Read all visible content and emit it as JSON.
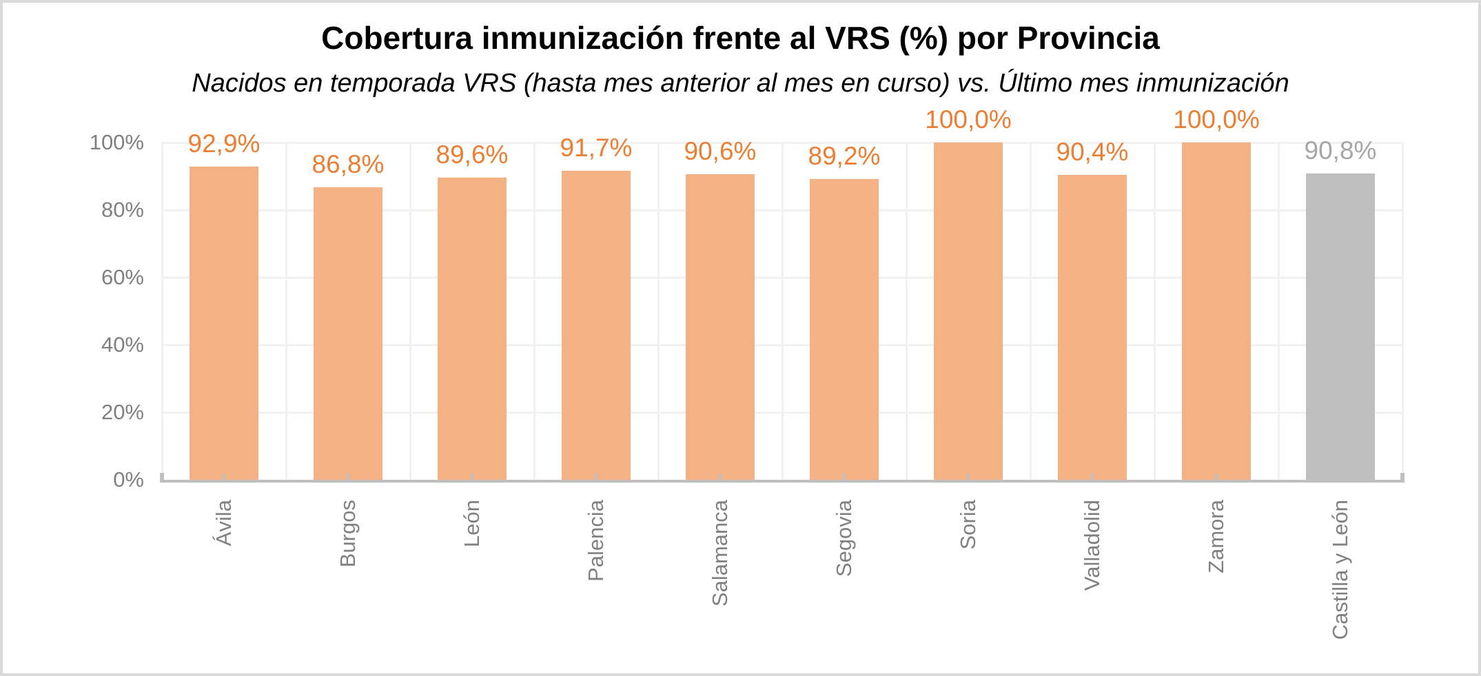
{
  "title": "Cobertura inmunización frente al VRS (%) por Provincia",
  "subtitle": "Nacidos en temporada VRS (hasta mes anterior al mes en curso) vs. Último mes inmunización",
  "chart_data": {
    "type": "bar",
    "title": "Cobertura inmunización frente al VRS (%) por Provincia",
    "subtitle": "Nacidos en temporada VRS (hasta mes anterior al mes en curso) vs. Último mes inmunización",
    "categories": [
      "Ávila",
      "Burgos",
      "León",
      "Palencia",
      "Salamanca",
      "Segovia",
      "Soria",
      "Valladolid",
      "Zamora",
      "Castilla y León"
    ],
    "values": [
      92.9,
      86.8,
      89.6,
      91.7,
      90.6,
      89.2,
      100.0,
      90.4,
      100.0,
      90.8
    ],
    "data_labels": [
      "92,9%",
      "86,8%",
      "89,6%",
      "91,7%",
      "90,6%",
      "89,2%",
      "100,0%",
      "90,4%",
      "100,0%",
      "90,8%"
    ],
    "bar_kind": [
      "province",
      "province",
      "province",
      "province",
      "province",
      "province",
      "province",
      "province",
      "province",
      "region"
    ],
    "xlabel": "",
    "ylabel": "",
    "ylim": [
      0,
      100
    ],
    "ytick_labels": [
      "0%",
      "20%",
      "40%",
      "60%",
      "80%",
      "100%"
    ],
    "ytick_values": [
      0,
      20,
      40,
      60,
      80,
      100
    ],
    "grid": "horizontal and vertical, light gray",
    "legend": "none",
    "colors": {
      "province_bar": "#F4B183",
      "region_bar": "#BFBFBF",
      "province_data_label": "#ED7D31",
      "region_data_label": "#A6A6A6",
      "axis_text": "#808080",
      "axis_line": "#BFBFBF",
      "gridline": "#F1F1F1",
      "title_text": "#000000",
      "frame_border": "#D9D9D9"
    }
  }
}
